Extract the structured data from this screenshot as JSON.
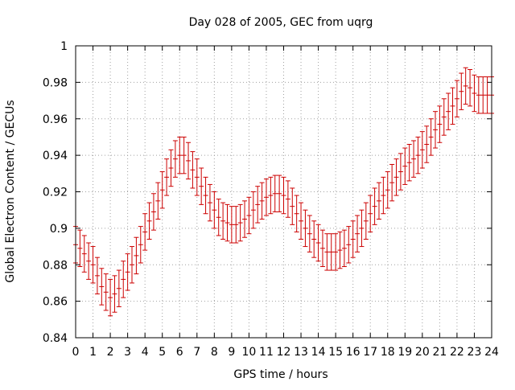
{
  "chart_data": {
    "type": "errorbar",
    "title": "Day 028 of 2005, GEC from uqrg",
    "xlabel": "GPS time / hours",
    "ylabel": "Global Electron Content / GECUs",
    "xlim": [
      0,
      24
    ],
    "ylim": [
      0.84,
      1.0
    ],
    "xticks": [
      0,
      1,
      2,
      3,
      4,
      5,
      6,
      7,
      8,
      9,
      10,
      11,
      12,
      13,
      14,
      15,
      16,
      17,
      18,
      19,
      20,
      21,
      22,
      23,
      24
    ],
    "xtick_labels": [
      "0",
      "1",
      "2",
      "3",
      "4",
      "5",
      "6",
      "7",
      "8",
      "9",
      "10",
      "11",
      "12",
      "13",
      "14",
      "15",
      "16",
      "17",
      "18",
      "19",
      "20",
      "21",
      "22",
      "23",
      "24"
    ],
    "yticks": [
      0.84,
      0.86,
      0.88,
      0.9,
      0.92,
      0.94,
      0.96,
      0.98,
      1.0
    ],
    "ytick_labels": [
      "0.84",
      "0.86",
      "0.88",
      "0.9",
      "0.92",
      "0.94",
      "0.96",
      "0.98",
      "1"
    ],
    "grid": true,
    "color": "#cc0000",
    "error": 0.01,
    "series": [
      {
        "name": "GEC",
        "x": [
          0,
          0.25,
          0.5,
          0.75,
          1,
          1.25,
          1.5,
          1.75,
          2,
          2.25,
          2.5,
          2.75,
          3,
          3.25,
          3.5,
          3.75,
          4,
          4.25,
          4.5,
          4.75,
          5,
          5.25,
          5.5,
          5.75,
          6,
          6.25,
          6.5,
          6.75,
          7,
          7.25,
          7.5,
          7.75,
          8,
          8.25,
          8.5,
          8.75,
          9,
          9.25,
          9.5,
          9.75,
          10,
          10.25,
          10.5,
          10.75,
          11,
          11.25,
          11.5,
          11.75,
          12,
          12.25,
          12.5,
          12.75,
          13,
          13.25,
          13.5,
          13.75,
          14,
          14.25,
          14.5,
          14.75,
          15,
          15.25,
          15.5,
          15.75,
          16,
          16.25,
          16.5,
          16.75,
          17,
          17.25,
          17.5,
          17.75,
          18,
          18.25,
          18.5,
          18.75,
          19,
          19.25,
          19.5,
          19.75,
          20,
          20.25,
          20.5,
          20.75,
          21,
          21.25,
          21.5,
          21.75,
          22,
          22.25,
          22.5,
          22.75,
          23,
          23.25,
          23.5,
          23.75,
          24
        ],
        "values": [
          0.891,
          0.889,
          0.886,
          0.882,
          0.88,
          0.874,
          0.868,
          0.865,
          0.862,
          0.864,
          0.867,
          0.872,
          0.876,
          0.88,
          0.885,
          0.891,
          0.898,
          0.904,
          0.909,
          0.915,
          0.921,
          0.928,
          0.933,
          0.938,
          0.94,
          0.94,
          0.937,
          0.932,
          0.928,
          0.923,
          0.918,
          0.914,
          0.91,
          0.906,
          0.904,
          0.903,
          0.902,
          0.902,
          0.903,
          0.905,
          0.907,
          0.91,
          0.913,
          0.915,
          0.917,
          0.918,
          0.919,
          0.919,
          0.918,
          0.916,
          0.912,
          0.908,
          0.904,
          0.9,
          0.897,
          0.894,
          0.892,
          0.889,
          0.887,
          0.887,
          0.887,
          0.888,
          0.889,
          0.891,
          0.894,
          0.897,
          0.9,
          0.904,
          0.908,
          0.912,
          0.915,
          0.918,
          0.921,
          0.925,
          0.928,
          0.931,
          0.934,
          0.936,
          0.938,
          0.94,
          0.943,
          0.946,
          0.95,
          0.954,
          0.957,
          0.961,
          0.964,
          0.967,
          0.971,
          0.975,
          0.978,
          0.977,
          0.974,
          0.973,
          0.973,
          0.973,
          0.973
        ]
      }
    ]
  }
}
